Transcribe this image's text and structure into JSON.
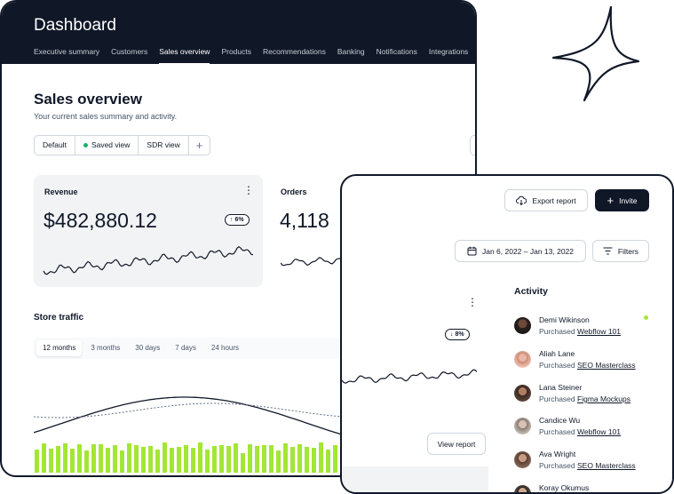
{
  "dashboard": {
    "title": "Dashboard",
    "tabs": [
      {
        "label": "Executive summary",
        "active": false
      },
      {
        "label": "Customers",
        "active": false
      },
      {
        "label": "Sales overview",
        "active": true
      },
      {
        "label": "Products",
        "active": false
      },
      {
        "label": "Recommendations",
        "active": false
      },
      {
        "label": "Banking",
        "active": false
      },
      {
        "label": "Notifications",
        "active": false
      },
      {
        "label": "Integrations",
        "active": false
      }
    ],
    "page_title": "Sales overview",
    "page_subtitle": "Your current sales summary and activity.",
    "views": {
      "default": "Default",
      "saved": "Saved view",
      "sdr": "SDR view",
      "add": "+"
    },
    "revenue": {
      "label": "Revenue",
      "value": "$482,880.12",
      "change": "6%",
      "change_dir": "up"
    },
    "orders": {
      "label": "Orders",
      "value": "4,118"
    },
    "store_traffic": {
      "title": "Store traffic",
      "ranges": [
        "12 months",
        "3 months",
        "30 days",
        "7 days",
        "24 hours"
      ],
      "active_range": "12 months"
    },
    "colors": {
      "accent": "#a3e635",
      "dark": "#101828",
      "success": "#17b26a"
    }
  },
  "panel": {
    "export_label": "Export report",
    "invite_label": "Invite",
    "date_range": "Jan 6, 2022 – Jan 13, 2022",
    "filters_label": "Filters",
    "orders_change": "8%",
    "orders_change_dir": "down",
    "view_report_label": "View report",
    "activity_title": "Activity",
    "activity": [
      {
        "name": "Demi Wikinson",
        "action": "Purchased",
        "item": "Webflow 101",
        "online": true
      },
      {
        "name": "Aliah Lane",
        "action": "Purchased",
        "item": "SEO Masterclass",
        "online": false
      },
      {
        "name": "Lana Steiner",
        "action": "Purchased",
        "item": "Figma Mockups",
        "online": false
      },
      {
        "name": "Candice Wu",
        "action": "Purchased",
        "item": "Webflow 101",
        "online": false
      },
      {
        "name": "Ava Wright",
        "action": "Purchased",
        "item": "SEO Masterclass",
        "online": false
      },
      {
        "name": "Koray Okumus",
        "action": "",
        "item": "",
        "online": false
      }
    ]
  },
  "icons": [
    "kebab-icon",
    "arrow-up-icon",
    "arrow-down-icon",
    "cloud-download-icon",
    "plus-icon",
    "calendar-icon",
    "filter-lines-icon",
    "sparkle-icon"
  ]
}
